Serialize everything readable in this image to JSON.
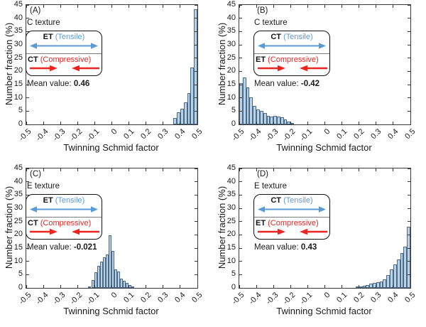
{
  "axes": {
    "xlabel": "Twinning Schmid factor",
    "ylabel": "Number fraction (%)",
    "xlim": [
      -0.5,
      0.5
    ],
    "ylim": [
      0,
      45
    ],
    "x_ticks": [
      "-0.5",
      "-0.4",
      "-0.3",
      "-0.2",
      "-0.1",
      "0",
      "0.1",
      "0.2",
      "0.3",
      "0.4",
      "0.5"
    ],
    "y_ticks": [
      "0",
      "5",
      "10",
      "15",
      "20",
      "25",
      "30",
      "35",
      "40",
      "45"
    ],
    "grid": "off",
    "tick_direction": "in"
  },
  "colors": {
    "bar_fill": "#b9d2ec",
    "bar_edge": "#4d6a85",
    "tensile_blue": "#5b9bd5",
    "compressive_red": "#eb2420",
    "axis": "#3a3a3a"
  },
  "chart_data": [
    {
      "type": "bar",
      "panel_label": "(A)",
      "texture": "C texture",
      "tensile": {
        "mode": "ET",
        "label": "(Tensile)"
      },
      "compressive": {
        "mode": "CT",
        "label": "(Compressive)"
      },
      "mean_label": "Mean value:",
      "mean_value": "0.46",
      "bin_start": 0.36,
      "bin_width": 0.02,
      "values": [
        2.3,
        4.6,
        5.9,
        8.3,
        11.9,
        21.5,
        43.3
      ]
    },
    {
      "type": "bar",
      "panel_label": "(B)",
      "texture": "C texture",
      "tensile": {
        "mode": "CT",
        "label": "(Tensile)"
      },
      "compressive": {
        "mode": "ET",
        "label": "(Compressive)"
      },
      "mean_label": "Mean value:",
      "mean_value": "-0.42",
      "bin_start": -0.5,
      "bin_width": 0.02,
      "values": [
        15.5,
        17.8,
        14.0,
        10.3,
        7.0,
        5.6,
        5.2,
        4.4,
        3.3,
        3.0,
        3.3,
        3.0,
        2.6,
        1.8,
        1.0,
        0.4
      ]
    },
    {
      "type": "bar",
      "panel_label": "(C)",
      "texture": "E texture",
      "tensile": {
        "mode": "ET",
        "label": "(Tensile)"
      },
      "compressive": {
        "mode": "CT",
        "label": "(Compressive)"
      },
      "mean_label": "Mean value:",
      "mean_value": "-0.021",
      "bin_start": -0.137,
      "bin_width": 0.0167,
      "values": [
        0.3,
        2.9,
        5.9,
        8.3,
        10.0,
        11.4,
        12.5,
        19.8,
        13.9,
        6.9,
        6.1,
        3.6,
        2.6,
        1.8,
        1.2,
        0.3
      ]
    },
    {
      "type": "bar",
      "panel_label": "(D)",
      "texture": "E texture",
      "tensile": {
        "mode": "CT",
        "label": "(Tensile)"
      },
      "compressive": {
        "mode": "ET",
        "label": "(Compressive)"
      },
      "mean_label": "Mean value:",
      "mean_value": "0.43",
      "bin_start": 0.18,
      "bin_width": 0.02,
      "values": [
        0.3,
        0.5,
        0.8,
        1.2,
        1.5,
        2.0,
        2.2,
        2.4,
        3.3,
        4.9,
        7.1,
        8.8,
        10.6,
        13.0,
        15.6,
        23.0
      ]
    }
  ]
}
